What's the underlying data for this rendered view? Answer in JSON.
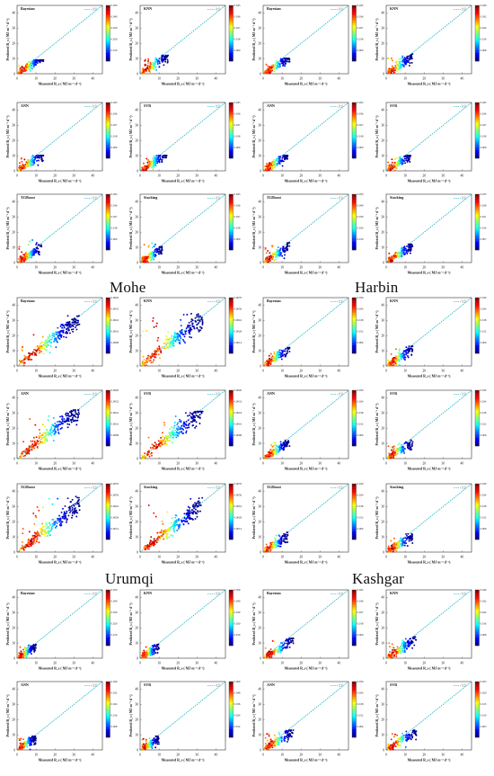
{
  "figure": {
    "cities": [
      "Mohe",
      "Harbin",
      "Urumqi",
      "Kashgar"
    ],
    "axis_label_x": "Measured R_s ( MJ m⁻² d⁻¹)",
    "axis_label_y": "Predicted R_s ( MJ m⁻² d⁻¹)",
    "legend_label": "1:1",
    "ticks": [
      "0",
      "10",
      "20",
      "30",
      "40"
    ]
  },
  "chart_data": [
    {
      "group": "Mohe",
      "model": "Bayesian",
      "type": "scatter",
      "cmax": 0.05,
      "xmax": 14,
      "ymax": 9
    },
    {
      "group": "Mohe",
      "model": "KNN",
      "type": "scatter",
      "cmax": 0.045,
      "xmax": 15,
      "ymax": 12
    },
    {
      "group": "Harbin",
      "model": "Bayesian",
      "type": "scatter",
      "cmax": 0.045,
      "xmax": 14,
      "ymax": 10
    },
    {
      "group": "Harbin",
      "model": "KNN",
      "type": "scatter",
      "cmax": 0.04,
      "xmax": 14,
      "ymax": 13
    },
    {
      "group": "Mohe",
      "model": "ANN",
      "type": "scatter",
      "cmax": 0.045,
      "xmax": 14,
      "ymax": 10
    },
    {
      "group": "Mohe",
      "model": "SVR",
      "type": "scatter",
      "cmax": 0.045,
      "xmax": 14,
      "ymax": 10
    },
    {
      "group": "Harbin",
      "model": "ANN",
      "type": "scatter",
      "cmax": 0.045,
      "xmax": 13,
      "ymax": 10
    },
    {
      "group": "Harbin",
      "model": "SVR",
      "type": "scatter",
      "cmax": 0.045,
      "xmax": 13,
      "ymax": 10
    },
    {
      "group": "Mohe",
      "model": "XGBoost",
      "type": "scatter",
      "cmax": 0.045,
      "xmax": 13,
      "ymax": 17
    },
    {
      "group": "Mohe",
      "model": "Stacking",
      "type": "scatter",
      "cmax": 0.045,
      "xmax": 12,
      "ymax": 16
    },
    {
      "group": "Harbin",
      "model": "XGBoost",
      "type": "scatter",
      "cmax": 0.05,
      "xmax": 14,
      "ymax": 13
    },
    {
      "group": "Harbin",
      "model": "Stacking",
      "type": "scatter",
      "cmax": 0.035,
      "xmax": 14,
      "ymax": 12
    },
    {
      "group": "Urumqi",
      "model": "Bayesian",
      "type": "scatter",
      "cmax": 0.004,
      "xmax": 33,
      "ymax": 33
    },
    {
      "group": "Urumqi",
      "model": "KNN",
      "type": "scatter",
      "cmax": 0.007,
      "xmax": 33,
      "ymax": 38
    },
    {
      "group": "Kashgar",
      "model": "Bayesian",
      "type": "scatter",
      "cmax": 0.03,
      "xmax": 14,
      "ymax": 12
    },
    {
      "group": "Kashgar",
      "model": "KNN",
      "type": "scatter",
      "cmax": 0.03,
      "xmax": 14,
      "ymax": 13
    },
    {
      "group": "Urumqi",
      "model": "ANN",
      "type": "scatter",
      "cmax": 0.004,
      "xmax": 33,
      "ymax": 32
    },
    {
      "group": "Urumqi",
      "model": "SVR",
      "type": "scatter",
      "cmax": 0.004,
      "xmax": 33,
      "ymax": 31
    },
    {
      "group": "Kashgar",
      "model": "ANN",
      "type": "scatter",
      "cmax": 0.03,
      "xmax": 14,
      "ymax": 12
    },
    {
      "group": "Kashgar",
      "model": "SVR",
      "type": "scatter",
      "cmax": 0.03,
      "xmax": 14,
      "ymax": 12
    },
    {
      "group": "Urumqi",
      "model": "XGBoost",
      "type": "scatter",
      "cmax": 0.007,
      "xmax": 33,
      "ymax": 40
    },
    {
      "group": "Urumqi",
      "model": "Stacking",
      "type": "scatter",
      "cmax": 0.007,
      "xmax": 33,
      "ymax": 38
    },
    {
      "group": "Kashgar",
      "model": "XGBoost",
      "type": "scatter",
      "cmax": 0.03,
      "xmax": 13,
      "ymax": 13
    },
    {
      "group": "Kashgar",
      "model": "Stacking",
      "type": "scatter",
      "cmax": 0.03,
      "xmax": 14,
      "ymax": 12
    },
    {
      "group": "",
      "model": "Bayesian",
      "type": "scatter",
      "cmax": 0.05,
      "xmax": 10,
      "ymax": 9
    },
    {
      "group": "",
      "model": "KNN",
      "type": "scatter",
      "cmax": 0.05,
      "xmax": 10,
      "ymax": 9
    },
    {
      "group": "",
      "model": "Bayesian",
      "type": "scatter",
      "cmax": 0.045,
      "xmax": 16,
      "ymax": 13
    },
    {
      "group": "",
      "model": "KNN",
      "type": "scatter",
      "cmax": 0.04,
      "xmax": 16,
      "ymax": 14
    },
    {
      "group": "",
      "model": "ANN",
      "type": "scatter",
      "cmax": 0.04,
      "xmax": 10,
      "ymax": 9
    },
    {
      "group": "",
      "model": "SVR",
      "type": "scatter",
      "cmax": 0.06,
      "xmax": 10,
      "ymax": 9
    },
    {
      "group": "",
      "model": "ANN",
      "type": "scatter",
      "cmax": 0.03,
      "xmax": 16,
      "ymax": 13
    },
    {
      "group": "",
      "model": "SVR",
      "type": "scatter",
      "cmax": 0.025,
      "xmax": 16,
      "ymax": 13
    }
  ]
}
